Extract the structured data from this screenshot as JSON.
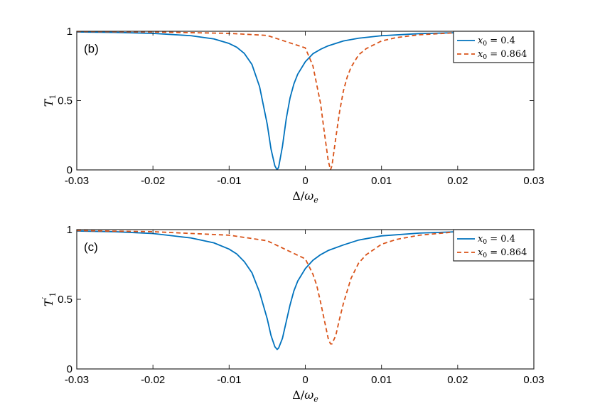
{
  "chart_data": [
    {
      "type": "line",
      "panel_label": "(b)",
      "xlabel": {
        "delta": "Δ",
        "slash": "/",
        "omega": "ω",
        "sub": "e"
      },
      "ylabel": {
        "main": "T",
        "sub": "1",
        "prime": ""
      },
      "xlim": [
        -0.03,
        0.03
      ],
      "ylim": [
        0,
        1
      ],
      "xticks": [
        -0.03,
        -0.02,
        -0.01,
        0,
        0.01,
        0.02,
        0.03
      ],
      "xtick_labels": [
        "-0.03",
        "-0.02",
        "-0.01",
        "0",
        "0.01",
        "0.02",
        "0.03"
      ],
      "yticks": [
        0,
        0.5,
        1
      ],
      "ytick_labels": [
        "0",
        "0.5",
        "1"
      ],
      "legend_position": "top-right",
      "grid": false,
      "series": [
        {
          "name": "x0 = 0.4",
          "legend": {
            "var": "x",
            "sub": "0",
            "eq": " = 0.4"
          },
          "color": "#0072BD",
          "dash": "solid",
          "x": [
            -0.03,
            -0.025,
            -0.02,
            -0.015,
            -0.012,
            -0.01,
            -0.009,
            -0.008,
            -0.007,
            -0.006,
            -0.005,
            -0.0045,
            -0.004,
            -0.0037,
            -0.0035,
            -0.003,
            -0.0025,
            -0.002,
            -0.0015,
            -0.001,
            0,
            0.001,
            0.002,
            0.003,
            0.005,
            0.007,
            0.01,
            0.015,
            0.02,
            0.025,
            0.03
          ],
          "y": [
            0.995,
            0.992,
            0.985,
            0.968,
            0.945,
            0.912,
            0.885,
            0.84,
            0.76,
            0.6,
            0.33,
            0.15,
            0.03,
            0.0,
            0.02,
            0.17,
            0.37,
            0.52,
            0.62,
            0.69,
            0.78,
            0.838,
            0.87,
            0.895,
            0.93,
            0.95,
            0.968,
            0.983,
            0.99,
            0.994,
            0.996
          ]
        },
        {
          "name": "x0 = 0.864",
          "legend": {
            "var": "x",
            "sub": "0",
            "eq": " = 0.864"
          },
          "color": "#D95319",
          "dash": "dashed",
          "x": [
            -0.03,
            -0.02,
            -0.01,
            -0.005,
            0,
            0.001,
            0.002,
            0.0025,
            0.003,
            0.0033,
            0.0035,
            0.004,
            0.0045,
            0.005,
            0.0055,
            0.006,
            0.007,
            0.008,
            0.01,
            0.012,
            0.015,
            0.02,
            0.025,
            0.03
          ],
          "y": [
            0.998,
            0.995,
            0.985,
            0.97,
            0.88,
            0.75,
            0.48,
            0.27,
            0.07,
            0.0,
            0.03,
            0.23,
            0.42,
            0.57,
            0.67,
            0.74,
            0.83,
            0.875,
            0.93,
            0.955,
            0.975,
            0.99,
            0.995,
            0.998
          ]
        }
      ]
    },
    {
      "type": "line",
      "panel_label": "(c)",
      "xlabel": {
        "delta": "Δ",
        "slash": "/",
        "omega": "ω",
        "sub": "e"
      },
      "ylabel": {
        "main": "T",
        "sub": "1",
        "prime": "′"
      },
      "xlim": [
        -0.03,
        0.03
      ],
      "ylim": [
        0,
        1
      ],
      "xticks": [
        -0.03,
        -0.02,
        -0.01,
        0,
        0.01,
        0.02,
        0.03
      ],
      "xtick_labels": [
        "-0.03",
        "-0.02",
        "-0.01",
        "0",
        "0.01",
        "0.02",
        "0.03"
      ],
      "yticks": [
        0,
        0.5,
        1
      ],
      "ytick_labels": [
        "0",
        "0.5",
        "1"
      ],
      "legend_position": "top-right",
      "grid": false,
      "series": [
        {
          "name": "x0 = 0.4",
          "legend": {
            "var": "x",
            "sub": "0",
            "eq": " = 0.4"
          },
          "color": "#0072BD",
          "dash": "solid",
          "x": [
            -0.03,
            -0.025,
            -0.02,
            -0.015,
            -0.012,
            -0.01,
            -0.009,
            -0.008,
            -0.007,
            -0.006,
            -0.005,
            -0.0045,
            -0.004,
            -0.0037,
            -0.0035,
            -0.003,
            -0.0025,
            -0.002,
            -0.0015,
            -0.001,
            0,
            0.001,
            0.002,
            0.003,
            0.005,
            0.007,
            0.01,
            0.015,
            0.02,
            0.025,
            0.03
          ],
          "y": [
            0.99,
            0.985,
            0.972,
            0.94,
            0.905,
            0.86,
            0.825,
            0.77,
            0.69,
            0.55,
            0.36,
            0.24,
            0.16,
            0.14,
            0.15,
            0.22,
            0.34,
            0.46,
            0.56,
            0.63,
            0.72,
            0.78,
            0.82,
            0.85,
            0.89,
            0.925,
            0.955,
            0.975,
            0.985,
            0.99,
            0.993
          ]
        },
        {
          "name": "x0 = 0.864",
          "legend": {
            "var": "x",
            "sub": "0",
            "eq": " = 0.864"
          },
          "color": "#D95319",
          "dash": "dashed",
          "x": [
            -0.03,
            -0.02,
            -0.01,
            -0.005,
            0,
            0.001,
            0.0015,
            0.002,
            0.0025,
            0.003,
            0.0033,
            0.0035,
            0.004,
            0.0045,
            0.005,
            0.006,
            0.007,
            0.008,
            0.01,
            0.012,
            0.015,
            0.02,
            0.025,
            0.03
          ],
          "y": [
            0.993,
            0.985,
            0.96,
            0.92,
            0.79,
            0.68,
            0.6,
            0.48,
            0.35,
            0.22,
            0.18,
            0.18,
            0.24,
            0.36,
            0.47,
            0.65,
            0.76,
            0.82,
            0.895,
            0.93,
            0.96,
            0.985,
            0.99,
            0.993
          ]
        }
      ]
    }
  ]
}
